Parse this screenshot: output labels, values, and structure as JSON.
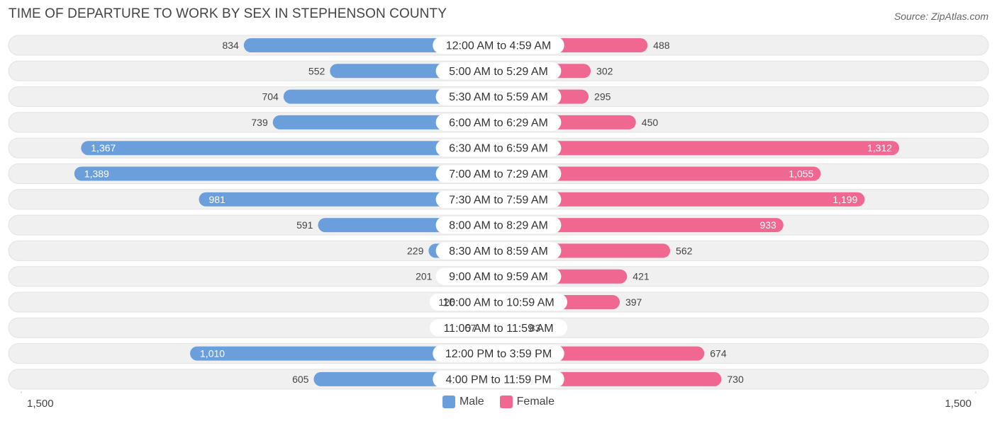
{
  "title": "TIME OF DEPARTURE TO WORK BY SEX IN STEPHENSON COUNTY",
  "source": "Source: ZipAtlas.com",
  "axis_left_label": "1,500",
  "axis_right_label": "1,500",
  "colors": {
    "male": "#6a9fdc",
    "male_light": "#a9c9ee",
    "female": "#f06892",
    "female_light": "#f7a9c2",
    "row_bg": "#f0f0f0"
  },
  "chart_data": {
    "type": "bar",
    "orientation": "horizontal-diverging",
    "title": "TIME OF DEPARTURE TO WORK BY SEX IN STEPHENSON COUNTY",
    "xlim": [
      -1500,
      1500
    ],
    "legend": "bottom-center",
    "categories": [
      "12:00 AM to 4:59 AM",
      "5:00 AM to 5:29 AM",
      "5:30 AM to 5:59 AM",
      "6:00 AM to 6:29 AM",
      "6:30 AM to 6:59 AM",
      "7:00 AM to 7:29 AM",
      "7:30 AM to 7:59 AM",
      "8:00 AM to 8:29 AM",
      "8:30 AM to 8:59 AM",
      "9:00 AM to 9:59 AM",
      "10:00 AM to 10:59 AM",
      "11:00 AM to 11:59 AM",
      "12:00 PM to 3:59 PM",
      "4:00 PM to 11:59 PM"
    ],
    "series": [
      {
        "name": "Male",
        "values": [
          834,
          552,
          704,
          739,
          1367,
          1389,
          981,
          591,
          229,
          201,
          126,
          57,
          1010,
          605
        ],
        "labels": [
          "834",
          "552",
          "704",
          "739",
          "1,367",
          "1,389",
          "981",
          "591",
          "229",
          "201",
          "126",
          "57",
          "1,010",
          "605"
        ]
      },
      {
        "name": "Female",
        "values": [
          488,
          302,
          295,
          450,
          1312,
          1055,
          1199,
          933,
          562,
          421,
          397,
          83,
          674,
          730
        ],
        "labels": [
          "488",
          "302",
          "295",
          "450",
          "1,312",
          "1,055",
          "1,199",
          "933",
          "562",
          "421",
          "397",
          "83",
          "674",
          "730"
        ]
      }
    ]
  }
}
